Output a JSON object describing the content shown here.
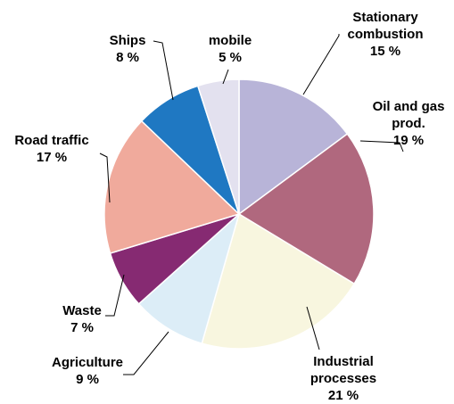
{
  "chart_data": {
    "type": "pie",
    "title": "",
    "start_angle_deg": 0,
    "direction": "clockwise",
    "slices": [
      {
        "name": "Stationary combustion",
        "label_lines": [
          "Stationary",
          "combustion",
          "15 %"
        ],
        "value": 15,
        "color": "#b8b4d8"
      },
      {
        "name": "Oil and gas prod.",
        "label_lines": [
          "Oil and gas",
          "prod.",
          "19 %"
        ],
        "value": 19,
        "color": "#b0687e"
      },
      {
        "name": "Industrial processes",
        "label_lines": [
          "Industrial",
          "processes",
          "21 %"
        ],
        "value": 21,
        "color": "#f8f6df"
      },
      {
        "name": "Agriculture",
        "label_lines": [
          "Agriculture",
          "9 %"
        ],
        "value": 9,
        "color": "#dcedf7"
      },
      {
        "name": "Waste",
        "label_lines": [
          "Waste",
          "7 %"
        ],
        "value": 7,
        "color": "#862a72"
      },
      {
        "name": "Road traffic",
        "label_lines": [
          "Road traffic",
          "17 %"
        ],
        "value": 17,
        "color": "#f0aa9c"
      },
      {
        "name": "Ships",
        "label_lines": [
          "Ships",
          "8 %"
        ],
        "value": 8,
        "color": "#1f78c2"
      },
      {
        "name": "mobile",
        "label_lines": [
          "mobile",
          "5 %"
        ],
        "value": 5,
        "color": "#e3e1ef"
      }
    ]
  }
}
